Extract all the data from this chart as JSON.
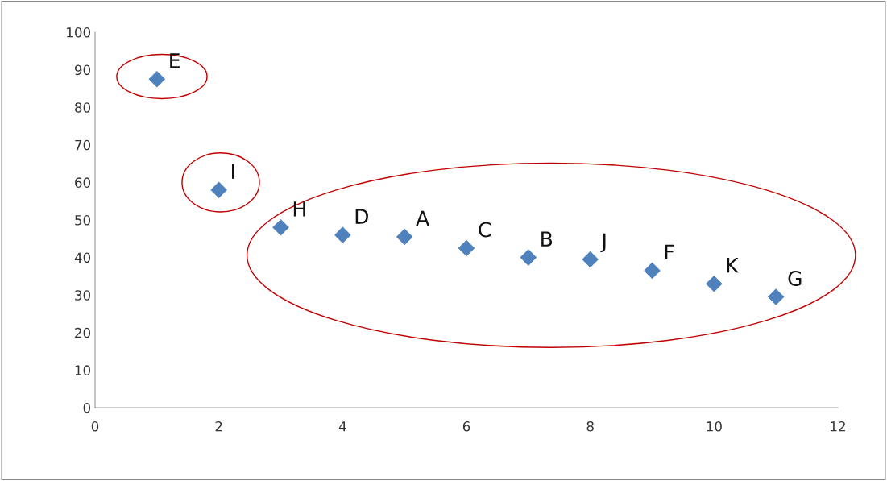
{
  "chart_data": {
    "type": "scatter",
    "x": [
      1,
      2,
      3,
      4,
      5,
      6,
      7,
      8,
      9,
      10,
      11
    ],
    "values": [
      87.5,
      58,
      48,
      46,
      45.5,
      42.5,
      40,
      39.5,
      36.5,
      33,
      29.5
    ],
    "color": "#4f81bd",
    "marker": "diamond",
    "xlim": [
      0,
      12
    ],
    "xticks": [
      0,
      2,
      4,
      6,
      8,
      10,
      12
    ],
    "ylim": [
      0,
      100
    ],
    "yticks": [
      0,
      10,
      20,
      30,
      40,
      50,
      60,
      70,
      80,
      90,
      100
    ],
    "grid": false,
    "annotations": [
      {
        "text": "E",
        "x": 1,
        "y": 87.5
      },
      {
        "text": "I",
        "x": 2,
        "y": 58
      },
      {
        "text": "H",
        "x": 3,
        "y": 48
      },
      {
        "text": "D",
        "x": 4,
        "y": 46
      },
      {
        "text": "A",
        "x": 5,
        "y": 45.5
      },
      {
        "text": "C",
        "x": 6,
        "y": 42.5
      },
      {
        "text": "B",
        "x": 7,
        "y": 40
      },
      {
        "text": "J",
        "x": 8,
        "y": 39.5
      },
      {
        "text": "F",
        "x": 9,
        "y": 36.5
      },
      {
        "text": "K",
        "x": 10,
        "y": 33
      },
      {
        "text": "G",
        "x": 11,
        "y": 29.5
      }
    ]
  }
}
